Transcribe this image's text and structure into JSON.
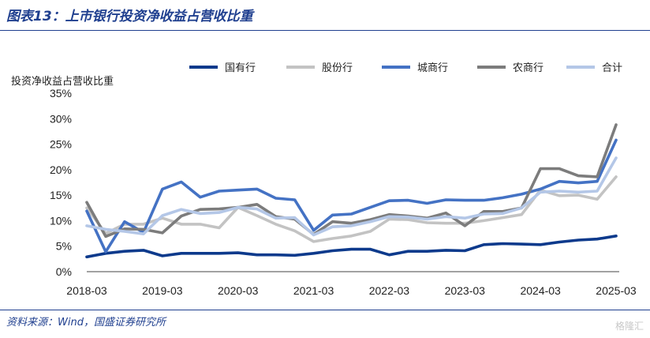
{
  "figure": {
    "title": "图表13：上市银行投资净收益占营收比重",
    "source": "资料来源：Wind，国盛证券研究所",
    "watermark": "格隆汇"
  },
  "chart_data": {
    "type": "line",
    "title": "",
    "ylabel": "投资净收益占营收比重",
    "xlabel": "",
    "ylim": [
      0,
      35
    ],
    "yticks": [
      "0%",
      "5%",
      "10%",
      "15%",
      "20%",
      "25%",
      "30%",
      "35%"
    ],
    "xticks": [
      "2018-03",
      "2019-03",
      "2020-03",
      "2021-03",
      "2022-03",
      "2023-03",
      "2024-03",
      "2025-03"
    ],
    "grid": false,
    "legend_position": "top",
    "x": [
      "2018-03",
      "2018-06",
      "2018-09",
      "2018-12",
      "2019-03",
      "2019-06",
      "2019-09",
      "2019-12",
      "2020-03",
      "2020-06",
      "2020-09",
      "2020-12",
      "2021-03",
      "2021-06",
      "2021-09",
      "2021-12",
      "2022-03",
      "2022-06",
      "2022-09",
      "2022-12",
      "2023-03",
      "2023-06",
      "2023-09",
      "2023-12",
      "2024-03",
      "2024-06",
      "2024-09",
      "2024-12",
      "2025-03"
    ],
    "series": [
      {
        "name": "国有行",
        "color": "#0d3a8c",
        "values": [
          2.9,
          3.6,
          4.0,
          4.2,
          3.1,
          3.6,
          3.6,
          3.6,
          3.7,
          3.3,
          3.3,
          3.2,
          3.6,
          4.1,
          4.4,
          4.4,
          3.3,
          4.0,
          4.0,
          4.2,
          4.1,
          5.3,
          5.5,
          5.4,
          5.3,
          5.8,
          6.2,
          6.4,
          7.0
        ]
      },
      {
        "name": "股份行",
        "color": "#c3c3c3",
        "values": [
          12.5,
          7.5,
          9.3,
          9.3,
          10.5,
          9.3,
          9.3,
          8.6,
          12.6,
          11.0,
          9.3,
          8.0,
          5.9,
          6.5,
          7.0,
          7.9,
          10.3,
          10.2,
          9.6,
          9.5,
          9.5,
          10.0,
          10.6,
          11.2,
          16.0,
          14.9,
          15.0,
          14.2,
          18.6
        ]
      },
      {
        "name": "城商行",
        "color": "#4472c4",
        "values": [
          11.9,
          3.9,
          9.8,
          7.7,
          16.2,
          17.6,
          14.6,
          15.8,
          16.0,
          16.2,
          14.4,
          14.1,
          8.1,
          11.1,
          11.3,
          12.6,
          13.9,
          14.0,
          13.4,
          14.1,
          14.0,
          14.0,
          14.5,
          15.2,
          16.2,
          17.7,
          17.4,
          17.7,
          25.8
        ]
      },
      {
        "name": "农商行",
        "color": "#7c7c7c",
        "values": [
          13.6,
          6.9,
          8.4,
          8.3,
          7.6,
          10.9,
          12.2,
          12.3,
          12.6,
          13.2,
          10.8,
          10.3,
          7.3,
          9.8,
          9.5,
          10.2,
          11.2,
          10.9,
          10.5,
          11.5,
          9.0,
          11.8,
          11.8,
          12.5,
          20.2,
          20.2,
          18.8,
          18.6,
          28.8
        ]
      },
      {
        "name": "合计",
        "color": "#b4c7e7",
        "values": [
          9.0,
          8.3,
          7.9,
          7.4,
          11.0,
          12.2,
          11.4,
          11.6,
          12.6,
          12.3,
          10.5,
          10.6,
          7.2,
          8.8,
          9.0,
          9.8,
          10.8,
          10.7,
          10.3,
          10.8,
          10.5,
          11.3,
          11.4,
          12.5,
          15.6,
          15.8,
          15.6,
          15.8,
          22.3
        ]
      }
    ]
  }
}
